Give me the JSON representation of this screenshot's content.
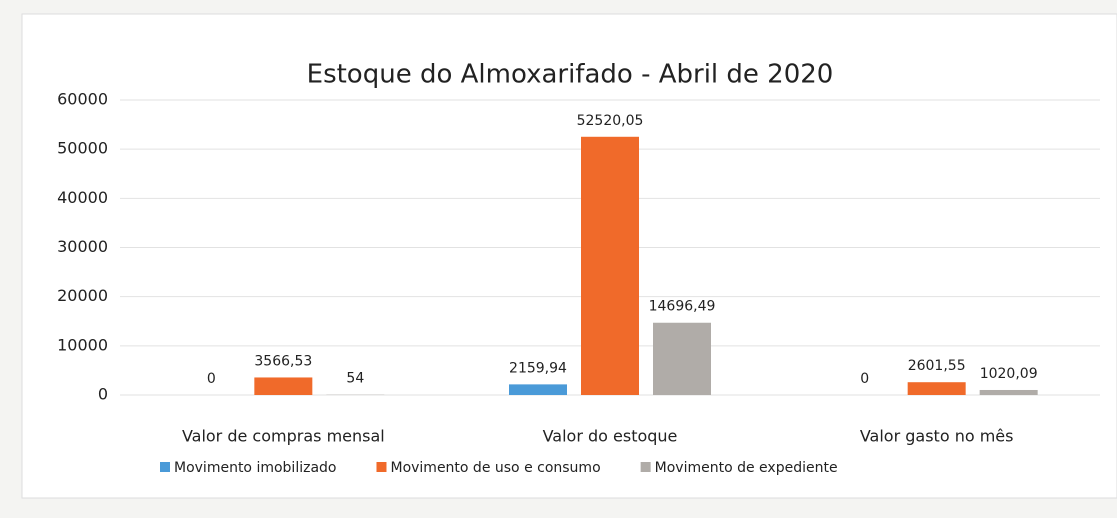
{
  "chart_data": {
    "type": "bar",
    "title": "Estoque do Almoxarifado - Abril de 2020",
    "categories": [
      "Valor de compras mensal",
      "Valor do estoque",
      "Valor gasto no mês"
    ],
    "series": [
      {
        "name": "Movimento imobilizado",
        "color": "#4a9ad8",
        "values": [
          0,
          2159.94,
          0
        ],
        "value_labels": [
          "0",
          "2159,94",
          "0"
        ]
      },
      {
        "name": "Movimento de uso e consumo",
        "color": "#f06a2a",
        "values": [
          3566.53,
          52520.05,
          2601.55
        ],
        "value_labels": [
          "3566,53",
          "52520,05",
          "2601,55"
        ]
      },
      {
        "name": "Movimento de expediente",
        "color": "#b0aca8",
        "values": [
          54,
          14696.49,
          1020.09
        ],
        "value_labels": [
          "54",
          "14696,49",
          "1020,09"
        ]
      }
    ],
    "ylim": [
      0,
      60000
    ],
    "yticks": [
      0,
      10000,
      20000,
      30000,
      40000,
      50000,
      60000
    ],
    "grid": true,
    "legend": "bottom"
  }
}
